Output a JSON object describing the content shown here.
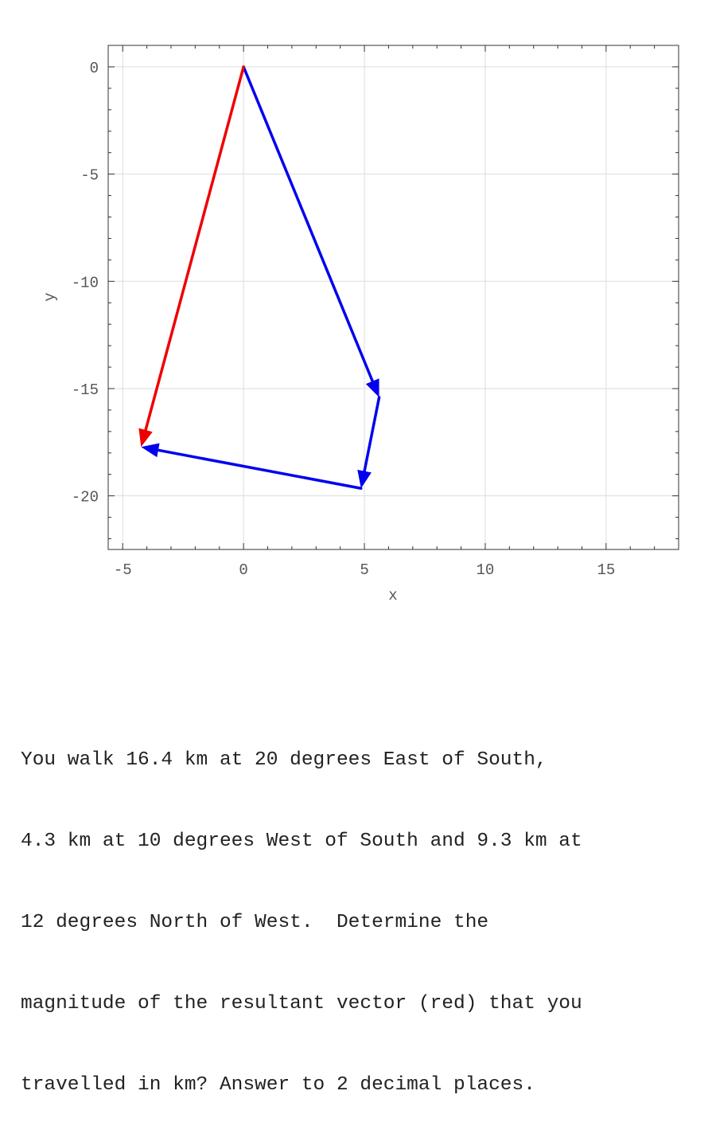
{
  "chart_data": {
    "type": "vector-diagram",
    "xlabel": "x",
    "ylabel": "y",
    "xlim": [
      -5.6,
      18
    ],
    "ylim": [
      -22.5,
      1
    ],
    "xticks": [
      -5,
      0,
      5,
      10,
      15
    ],
    "yticks": [
      0,
      -5,
      -10,
      -15,
      -20
    ],
    "grid": true,
    "vectors": [
      {
        "id": "leg1",
        "from": [
          0,
          0
        ],
        "to": [
          5.61,
          -15.41
        ],
        "color": "#0000ee"
      },
      {
        "id": "leg2",
        "from": [
          5.61,
          -15.41
        ],
        "to": [
          4.86,
          -19.65
        ],
        "color": "#0000ee"
      },
      {
        "id": "leg3",
        "from": [
          4.86,
          -19.65
        ],
        "to": [
          -4.24,
          -17.72
        ],
        "color": "#0000ee"
      },
      {
        "id": "resultant",
        "from": [
          0,
          0
        ],
        "to": [
          -4.24,
          -17.72
        ],
        "color": "#ee0000"
      }
    ]
  },
  "question": {
    "lines": [
      "You walk 16.4 km at 20 degrees East of South,",
      "4.3 km at 10 degrees West of South and 9.3 km at",
      "12 degrees North of West.  Determine the",
      "magnitude of the resultant vector (red) that you",
      "travelled in km? Answer to 2 decimal places."
    ]
  }
}
